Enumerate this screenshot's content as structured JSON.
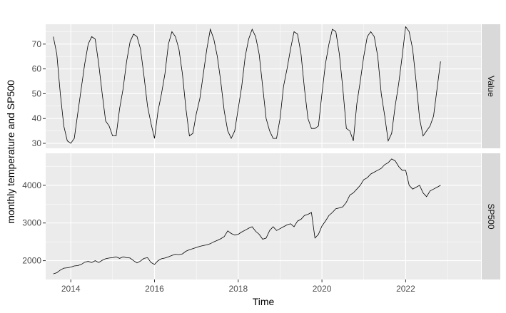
{
  "chart_data": {
    "type": "line",
    "layout": "faceted",
    "xlabel": "Time",
    "ylabel": "monthly temperature and SP500",
    "x_ticks": [
      2014,
      2016,
      2018,
      2020,
      2022
    ],
    "xlim": [
      2013.4,
      2023.8
    ],
    "grid": true,
    "series": [
      {
        "name": "Value",
        "y_ticks": [
          30,
          40,
          50,
          60,
          70
        ],
        "ylim": [
          28,
          78
        ],
        "x_start": 2013.583,
        "x_step": 0.08333,
        "values": [
          73,
          66,
          50,
          37,
          31,
          30,
          32,
          42,
          52,
          62,
          70,
          73,
          72,
          62,
          50,
          39,
          37,
          33,
          33,
          44,
          52,
          63,
          71,
          74,
          73,
          68,
          57,
          45,
          38,
          32,
          43,
          50,
          58,
          70,
          75,
          73,
          68,
          58,
          44,
          33,
          34,
          42,
          48,
          58,
          68,
          76,
          72,
          65,
          55,
          43,
          35,
          32,
          35,
          44,
          53,
          65,
          72,
          76,
          73,
          66,
          53,
          40,
          35,
          32,
          32,
          40,
          53,
          60,
          68,
          75,
          74,
          66,
          52,
          40,
          36,
          36,
          37,
          50,
          62,
          70,
          76,
          75,
          66,
          52,
          36,
          35,
          31,
          46,
          55,
          65,
          73,
          75,
          73,
          65,
          50,
          41,
          31,
          34,
          45,
          54,
          65,
          77,
          75,
          68,
          55,
          40,
          33,
          35,
          37,
          41,
          52,
          63
        ]
      },
      {
        "name": "SP500",
        "y_ticks": [
          2000,
          3000,
          4000
        ],
        "ylim": [
          1500,
          4850
        ],
        "x_start": 2013.583,
        "x_step": 0.08333,
        "values": [
          1650,
          1680,
          1750,
          1800,
          1810,
          1830,
          1860,
          1870,
          1900,
          1960,
          1980,
          1950,
          2000,
          1950,
          2010,
          2050,
          2070,
          2080,
          2100,
          2060,
          2100,
          2080,
          2070,
          2000,
          1940,
          1990,
          2060,
          2080,
          1950,
          1900,
          2000,
          2050,
          2070,
          2100,
          2140,
          2170,
          2160,
          2180,
          2250,
          2290,
          2320,
          2350,
          2380,
          2400,
          2420,
          2450,
          2500,
          2540,
          2580,
          2640,
          2790,
          2720,
          2680,
          2700,
          2760,
          2810,
          2860,
          2900,
          2780,
          2700,
          2570,
          2600,
          2800,
          2900,
          2800,
          2850,
          2900,
          2950,
          2980,
          2900,
          3050,
          3100,
          3200,
          3230,
          3280,
          2600,
          2700,
          2920,
          3050,
          3200,
          3280,
          3380,
          3400,
          3430,
          3550,
          3740,
          3800,
          3900,
          4000,
          4150,
          4200,
          4300,
          4350,
          4400,
          4450,
          4550,
          4600,
          4700,
          4650,
          4500,
          4400,
          4400,
          4000,
          3900,
          3950,
          4000,
          3800,
          3700,
          3850,
          3900,
          3950,
          4000
        ]
      }
    ]
  }
}
